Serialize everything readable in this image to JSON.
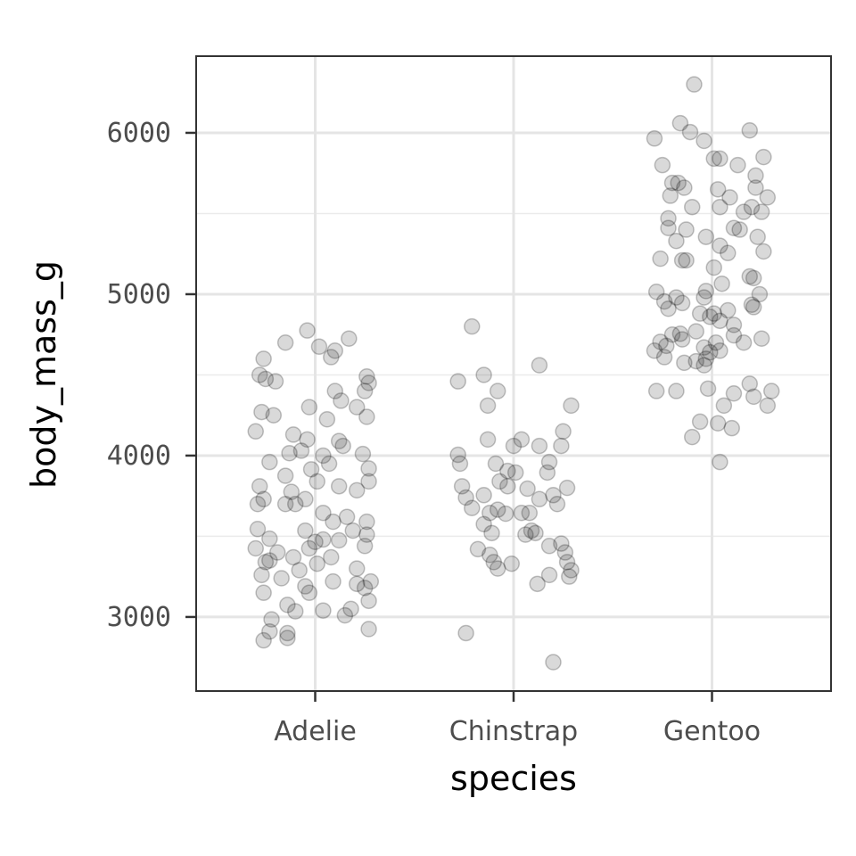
{
  "chart_data": {
    "type": "scatter",
    "subtype": "jitter",
    "title": "",
    "xlabel": "species",
    "ylabel": "body_mass_g",
    "categories": [
      "Adelie",
      "Chinstrap",
      "Gentoo"
    ],
    "yticks": [
      3000,
      4000,
      5000,
      6000
    ],
    "ytick_labels": [
      "3000",
      "4000",
      "5000",
      "6000"
    ],
    "yminor": [
      3500,
      4500,
      5500
    ],
    "ylim": [
      2541,
      6475
    ],
    "xlim": [
      0.4,
      3.6
    ],
    "grid": true,
    "point_color": "#000000",
    "point_alpha": 0.15,
    "series": [
      {
        "name": "Adelie",
        "points": [
          [
            -0.04,
            4775
          ],
          [
            0.17,
            4725
          ],
          [
            -0.15,
            4700
          ],
          [
            0.02,
            4675
          ],
          [
            0.1,
            4650
          ],
          [
            0.08,
            4610
          ],
          [
            -0.26,
            4600
          ],
          [
            -0.28,
            4500
          ],
          [
            -0.2,
            4460
          ],
          [
            0.26,
            4490
          ],
          [
            -0.25,
            4475
          ],
          [
            0.27,
            4450
          ],
          [
            0.1,
            4400
          ],
          [
            0.25,
            4400
          ],
          [
            0.13,
            4340
          ],
          [
            -0.27,
            4270
          ],
          [
            -0.21,
            4250
          ],
          [
            -0.03,
            4300
          ],
          [
            0.06,
            4225
          ],
          [
            0.21,
            4300
          ],
          [
            0.26,
            4240
          ],
          [
            -0.3,
            4150
          ],
          [
            -0.11,
            4130
          ],
          [
            -0.04,
            4100
          ],
          [
            0.12,
            4090
          ],
          [
            -0.23,
            3960
          ],
          [
            -0.13,
            4015
          ],
          [
            -0.07,
            4030
          ],
          [
            0.04,
            4000
          ],
          [
            0.14,
            4060
          ],
          [
            0.24,
            4010
          ],
          [
            0.27,
            3920
          ],
          [
            -0.02,
            3915
          ],
          [
            -0.15,
            3875
          ],
          [
            0.07,
            3950
          ],
          [
            -0.28,
            3810
          ],
          [
            -0.26,
            3730
          ],
          [
            -0.29,
            3700
          ],
          [
            -0.12,
            3775
          ],
          [
            -0.05,
            3730
          ],
          [
            0.01,
            3840
          ],
          [
            0.12,
            3810
          ],
          [
            0.21,
            3785
          ],
          [
            0.27,
            3840
          ],
          [
            -0.15,
            3700
          ],
          [
            -0.1,
            3700
          ],
          [
            0.04,
            3645
          ],
          [
            0.09,
            3590
          ],
          [
            0.16,
            3620
          ],
          [
            0.26,
            3590
          ],
          [
            -0.29,
            3545
          ],
          [
            -0.23,
            3485
          ],
          [
            -0.05,
            3535
          ],
          [
            0.0,
            3465
          ],
          [
            0.04,
            3480
          ],
          [
            0.12,
            3475
          ],
          [
            0.19,
            3535
          ],
          [
            0.26,
            3510
          ],
          [
            0.25,
            3440
          ],
          [
            -0.3,
            3425
          ],
          [
            -0.19,
            3400
          ],
          [
            -0.11,
            3370
          ],
          [
            -0.03,
            3425
          ],
          [
            0.08,
            3370
          ],
          [
            -0.25,
            3340
          ],
          [
            -0.23,
            3350
          ],
          [
            -0.08,
            3290
          ],
          [
            0.01,
            3330
          ],
          [
            0.21,
            3300
          ],
          [
            -0.27,
            3260
          ],
          [
            -0.17,
            3240
          ],
          [
            0.21,
            3205
          ],
          [
            0.28,
            3220
          ],
          [
            -0.05,
            3190
          ],
          [
            0.09,
            3220
          ],
          [
            0.25,
            3180
          ],
          [
            -0.26,
            3150
          ],
          [
            -0.03,
            3150
          ],
          [
            0.27,
            3100
          ],
          [
            -0.14,
            3075
          ],
          [
            0.04,
            3040
          ],
          [
            0.18,
            3050
          ],
          [
            -0.1,
            3035
          ],
          [
            0.15,
            3010
          ],
          [
            -0.22,
            2985
          ],
          [
            -0.23,
            2910
          ],
          [
            0.27,
            2925
          ],
          [
            -0.14,
            2900
          ],
          [
            -0.26,
            2855
          ],
          [
            -0.14,
            2870
          ]
        ]
      },
      {
        "name": "Chinstrap",
        "points": [
          [
            -0.21,
            4800
          ],
          [
            0.13,
            4560
          ],
          [
            -0.15,
            4500
          ],
          [
            -0.28,
            4460
          ],
          [
            -0.08,
            4400
          ],
          [
            -0.13,
            4310
          ],
          [
            0.29,
            4310
          ],
          [
            0.25,
            4150
          ],
          [
            0.24,
            4060
          ],
          [
            -0.13,
            4100
          ],
          [
            0.04,
            4100
          ],
          [
            0.13,
            4060
          ],
          [
            0.0,
            4060
          ],
          [
            -0.28,
            4005
          ],
          [
            -0.27,
            3950
          ],
          [
            -0.09,
            3950
          ],
          [
            0.18,
            3960
          ],
          [
            -0.03,
            3905
          ],
          [
            0.01,
            3895
          ],
          [
            0.17,
            3895
          ],
          [
            -0.07,
            3840
          ],
          [
            -0.03,
            3810
          ],
          [
            0.07,
            3795
          ],
          [
            -0.26,
            3810
          ],
          [
            -0.24,
            3740
          ],
          [
            0.27,
            3800
          ],
          [
            -0.15,
            3755
          ],
          [
            0.13,
            3730
          ],
          [
            0.2,
            3755
          ],
          [
            0.22,
            3700
          ],
          [
            -0.21,
            3675
          ],
          [
            -0.12,
            3645
          ],
          [
            -0.08,
            3665
          ],
          [
            -0.04,
            3640
          ],
          [
            0.04,
            3645
          ],
          [
            0.08,
            3645
          ],
          [
            -0.15,
            3575
          ],
          [
            -0.11,
            3520
          ],
          [
            0.09,
            3535
          ],
          [
            0.06,
            3510
          ],
          [
            0.11,
            3520
          ],
          [
            0.24,
            3455
          ],
          [
            0.26,
            3400
          ],
          [
            0.18,
            3440
          ],
          [
            -0.18,
            3420
          ],
          [
            -0.12,
            3385
          ],
          [
            -0.1,
            3340
          ],
          [
            0.27,
            3340
          ],
          [
            0.29,
            3290
          ],
          [
            -0.08,
            3300
          ],
          [
            -0.01,
            3330
          ],
          [
            0.18,
            3260
          ],
          [
            0.28,
            3250
          ],
          [
            0.12,
            3205
          ],
          [
            -0.24,
            2900
          ],
          [
            0.2,
            2720
          ]
        ]
      },
      {
        "name": "Gentoo",
        "points": [
          [
            -0.09,
            6300
          ],
          [
            -0.29,
            5965
          ],
          [
            -0.16,
            6060
          ],
          [
            -0.11,
            6005
          ],
          [
            0.19,
            6015
          ],
          [
            -0.04,
            5950
          ],
          [
            -0.25,
            5800
          ],
          [
            0.01,
            5840
          ],
          [
            0.04,
            5840
          ],
          [
            0.13,
            5800
          ],
          [
            0.26,
            5850
          ],
          [
            -0.2,
            5690
          ],
          [
            -0.17,
            5690
          ],
          [
            -0.14,
            5660
          ],
          [
            0.22,
            5735
          ],
          [
            0.22,
            5660
          ],
          [
            0.03,
            5650
          ],
          [
            -0.21,
            5610
          ],
          [
            0.09,
            5600
          ],
          [
            0.28,
            5600
          ],
          [
            -0.1,
            5540
          ],
          [
            0.04,
            5540
          ],
          [
            0.16,
            5510
          ],
          [
            0.2,
            5540
          ],
          [
            0.25,
            5510
          ],
          [
            -0.22,
            5470
          ],
          [
            -0.22,
            5410
          ],
          [
            -0.13,
            5400
          ],
          [
            -0.03,
            5355
          ],
          [
            0.11,
            5410
          ],
          [
            0.14,
            5400
          ],
          [
            0.23,
            5355
          ],
          [
            -0.18,
            5330
          ],
          [
            0.04,
            5300
          ],
          [
            0.08,
            5255
          ],
          [
            0.26,
            5265
          ],
          [
            -0.26,
            5220
          ],
          [
            -0.15,
            5210
          ],
          [
            -0.13,
            5210
          ],
          [
            0.01,
            5165
          ],
          [
            0.19,
            5110
          ],
          [
            0.21,
            5100
          ],
          [
            0.05,
            5065
          ],
          [
            -0.28,
            5015
          ],
          [
            -0.03,
            5020
          ],
          [
            0.24,
            5000
          ],
          [
            -0.18,
            4980
          ],
          [
            -0.04,
            4980
          ],
          [
            -0.24,
            4955
          ],
          [
            -0.15,
            4945
          ],
          [
            0.2,
            4935
          ],
          [
            -0.22,
            4910
          ],
          [
            0.08,
            4900
          ],
          [
            -0.06,
            4880
          ],
          [
            -0.01,
            4860
          ],
          [
            0.01,
            4880
          ],
          [
            0.21,
            4920
          ],
          [
            0.11,
            4810
          ],
          [
            -0.2,
            4750
          ],
          [
            -0.16,
            4755
          ],
          [
            0.04,
            4835
          ],
          [
            -0.08,
            4770
          ],
          [
            0.16,
            4700
          ],
          [
            0.25,
            4725
          ],
          [
            -0.26,
            4705
          ],
          [
            -0.23,
            4680
          ],
          [
            -0.29,
            4650
          ],
          [
            -0.15,
            4720
          ],
          [
            0.02,
            4700
          ],
          [
            0.11,
            4745
          ],
          [
            -0.04,
            4670
          ],
          [
            -0.01,
            4640
          ],
          [
            -0.03,
            4600
          ],
          [
            -0.24,
            4610
          ],
          [
            -0.14,
            4575
          ],
          [
            -0.08,
            4585
          ],
          [
            -0.04,
            4560
          ],
          [
            0.04,
            4650
          ],
          [
            0.19,
            4445
          ],
          [
            -0.18,
            4400
          ],
          [
            -0.28,
            4400
          ],
          [
            -0.02,
            4415
          ],
          [
            0.11,
            4385
          ],
          [
            0.21,
            4365
          ],
          [
            0.3,
            4400
          ],
          [
            0.06,
            4310
          ],
          [
            0.28,
            4310
          ],
          [
            -0.06,
            4210
          ],
          [
            0.03,
            4200
          ],
          [
            0.1,
            4170
          ],
          [
            -0.1,
            4115
          ],
          [
            0.04,
            3960
          ]
        ]
      }
    ]
  }
}
